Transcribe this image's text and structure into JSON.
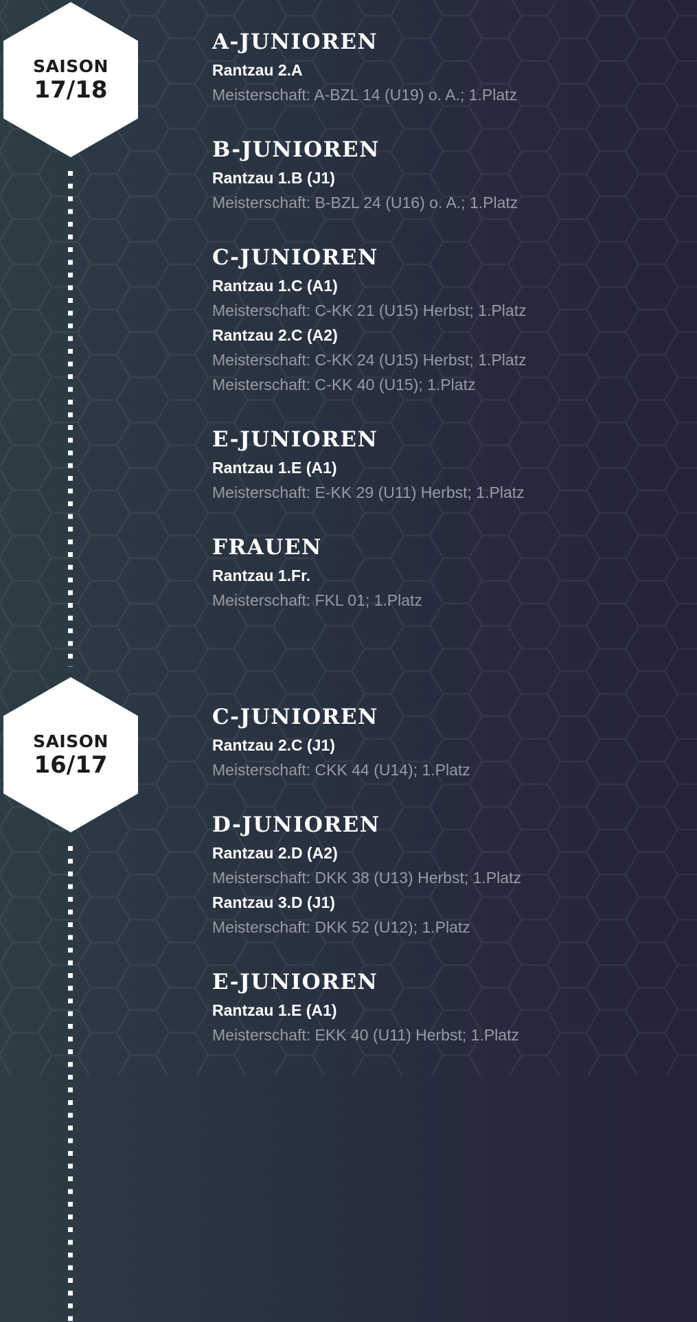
{
  "seasons": [
    {
      "label": "SAISON",
      "year": "17/18",
      "sections": [
        {
          "title": "A-JUNIOREN",
          "lines": [
            {
              "type": "team",
              "text": "Rantzau 2.A"
            },
            {
              "type": "meta",
              "text": "Meisterschaft: A-BZL 14 (U19) o. A.; 1.Platz"
            }
          ]
        },
        {
          "title": "B-JUNIOREN",
          "lines": [
            {
              "type": "team",
              "text": "Rantzau 1.B (J1)"
            },
            {
              "type": "meta",
              "text": "Meisterschaft: B-BZL 24 (U16) o. A.; 1.Platz"
            }
          ]
        },
        {
          "title": "C-JUNIOREN",
          "lines": [
            {
              "type": "team",
              "text": "Rantzau 1.C (A1)"
            },
            {
              "type": "meta",
              "text": "Meisterschaft: C-KK 21 (U15) Herbst; 1.Platz"
            },
            {
              "type": "team",
              "text": "Rantzau 2.C (A2)"
            },
            {
              "type": "meta",
              "text": "Meisterschaft: C-KK 24 (U15) Herbst; 1.Platz"
            },
            {
              "type": "meta",
              "text": "Meisterschaft: C-KK 40 (U15); 1.Platz"
            }
          ]
        },
        {
          "title": "E-JUNIOREN",
          "lines": [
            {
              "type": "team",
              "text": "Rantzau 1.E (A1)"
            },
            {
              "type": "meta",
              "text": "Meisterschaft: E-KK 29 (U11) Herbst; 1.Platz"
            }
          ]
        },
        {
          "title": "FRAUEN",
          "lines": [
            {
              "type": "team",
              "text": "Rantzau 1.Fr."
            },
            {
              "type": "meta",
              "text": "Meisterschaft: FKL 01; 1.Platz"
            }
          ]
        }
      ]
    },
    {
      "label": "SAISON",
      "year": "16/17",
      "sections": [
        {
          "title": "C-JUNIOREN",
          "lines": [
            {
              "type": "team",
              "text": "Rantzau 2.C (J1)"
            },
            {
              "type": "meta",
              "text": "Meisterschaft: CKK 44 (U14); 1.Platz"
            }
          ]
        },
        {
          "title": "D-JUNIOREN",
          "lines": [
            {
              "type": "team",
              "text": "Rantzau 2.D (A2)"
            },
            {
              "type": "meta",
              "text": "Meisterschaft: DKK 38 (U13) Herbst; 1.Platz"
            },
            {
              "type": "team",
              "text": "Rantzau 3.D (J1)"
            },
            {
              "type": "meta",
              "text": "Meisterschaft: DKK 52 (U12); 1.Platz"
            }
          ]
        },
        {
          "title": "E-JUNIOREN",
          "lines": [
            {
              "type": "team",
              "text": "Rantzau 1.E (A1)"
            },
            {
              "type": "meta",
              "text": "Meisterschaft: EKK 40 (U11) Herbst; 1.Platz"
            }
          ]
        }
      ]
    }
  ],
  "colors": {
    "team": "#ffffff",
    "meta": "#979ba3",
    "hex": "#ffffff"
  }
}
